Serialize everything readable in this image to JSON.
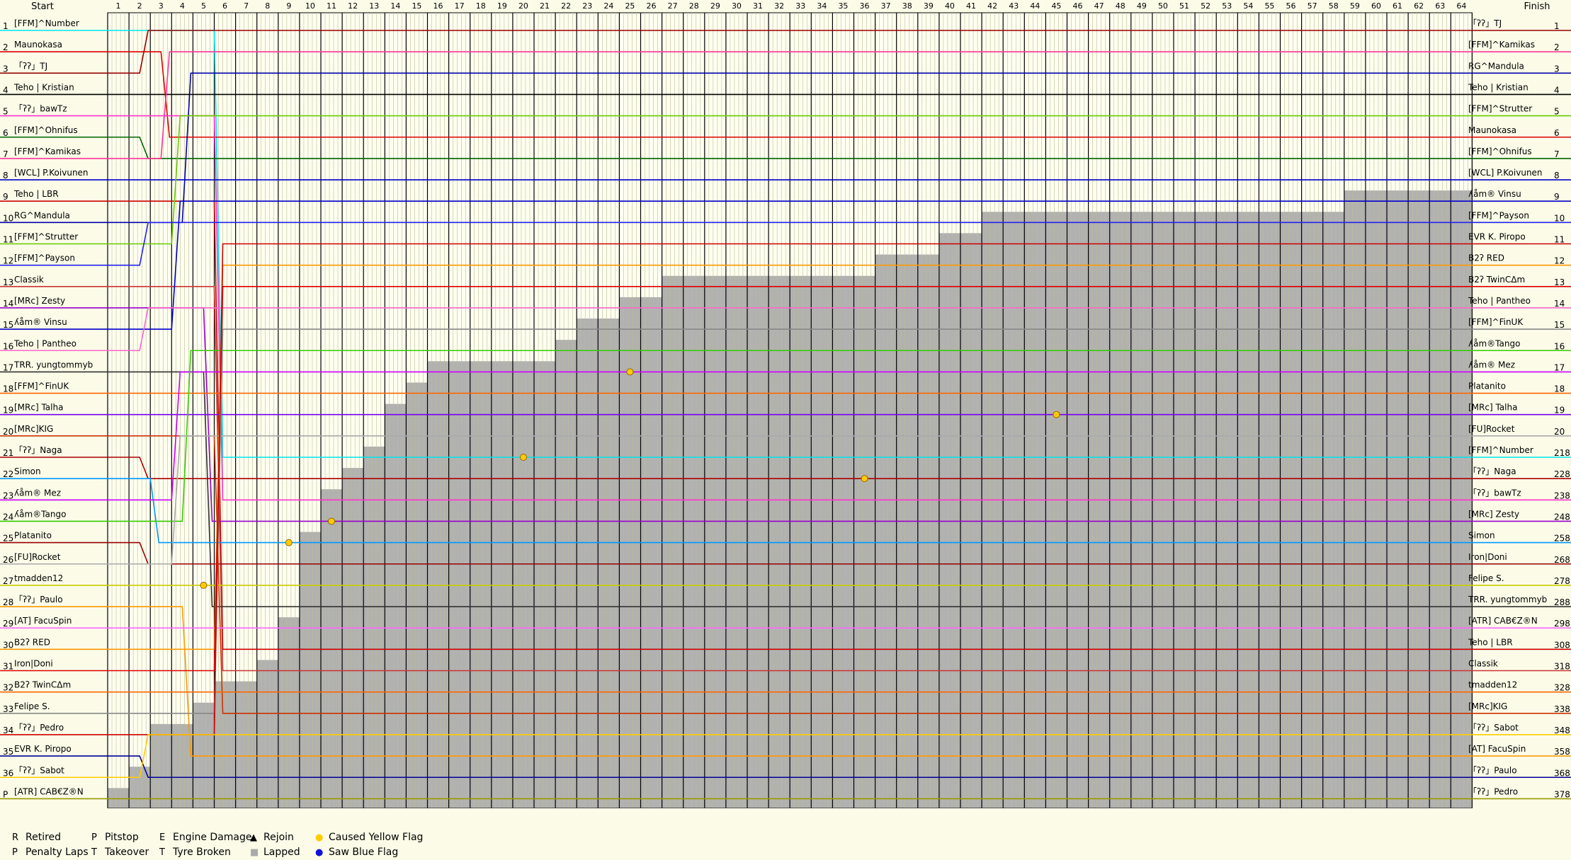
{
  "header": {
    "start": "Start",
    "finish": "Finish"
  },
  "chart_data": {
    "type": "line",
    "laps": 64,
    "start_positions": [
      "1",
      "2",
      "3",
      "4",
      "5",
      "6",
      "7",
      "8",
      "9",
      "10",
      "11",
      "12",
      "13",
      "14",
      "15",
      "16",
      "17",
      "18",
      "19",
      "20",
      "21",
      "22",
      "23",
      "24",
      "25",
      "26",
      "27",
      "28",
      "29",
      "30",
      "31",
      "32",
      "33",
      "34",
      "35",
      "36",
      "P"
    ],
    "start_names": [
      "[FFM]^Number",
      "Maunokasa",
      "「ʔʔ」TJ",
      "Teho | Kristian",
      "「ʔʔ」bawTz",
      "[FFM]^Ohnifus",
      "[FFM]^Kamikas",
      "[WCL] P.Koivunen",
      "Teho | LBR",
      "RG^Mandula",
      "[FFM]^Strutter",
      "[FFM]^Payson",
      "Classik",
      "[MRc] Zesty",
      "ʎåm® Vinsu",
      "Teho | Pantheo",
      "TRR. yungtommyb",
      "[FFM]^FinUK",
      "[MRc] Talha",
      "[MRc]KIG",
      "「ʔʔ」Naga",
      "Simon",
      "ʎåm® Mez",
      "ʎåm®Tango",
      "Platanito",
      "[FU]Rocket",
      "tmadden12",
      "「ʔʔ」Paulo",
      "[AT] FacuSpin",
      "B2ʔ RED",
      "Iron|Doni",
      "B2ʔ TwinCΔm",
      "Felipe S.",
      "「ʔʔ」Pedro",
      "EVR K. Piropo",
      "「ʔʔ」Sabot",
      "[ATR] CAB€Z®N"
    ],
    "finish_names": [
      "「ʔʔ」TJ",
      "[FFM]^Kamikas",
      "RG^Mandula",
      "Teho | Kristian",
      "[FFM]^Strutter",
      "Maunokasa",
      "[FFM]^Ohnifus",
      "[WCL] P.Koivunen",
      "ʎåm® Vinsu",
      "[FFM]^Payson",
      "EVR K. Piropo",
      "B2ʔ RED",
      "B2ʔ TwinCΔm",
      "Teho | Pantheo",
      "[FFM]^FinUK",
      "ʎåm®Tango",
      "ʎåm® Mez",
      "Platanito",
      "[MRc] Talha",
      "[FU]Rocket",
      "[FFM]^Number",
      "「ʔʔ」Naga",
      "「ʔʔ」bawTz",
      "[MRc] Zesty",
      "Simon",
      "Iron|Doni",
      "Felipe S.",
      "TRR. yungtommyb",
      "[ATR] CAB€Z®N",
      "Teho | LBR",
      "Classik",
      "tmadden12",
      "[MRc]KIG",
      "「ʔʔ」Sabot",
      "[AT] FacuSpin",
      "「ʔʔ」Paulo",
      "「ʔʔ」Pedro"
    ],
    "finish_positions": [
      "1",
      "2",
      "3",
      "4",
      "5",
      "6",
      "7",
      "8",
      "9",
      "10",
      "11",
      "12",
      "13",
      "14",
      "15",
      "16",
      "17",
      "18",
      "19",
      "20",
      "21",
      "22",
      "23",
      "24",
      "25",
      "26",
      "27",
      "28",
      "29",
      "30",
      "31",
      "32",
      "33",
      "34",
      "35",
      "36",
      "37"
    ],
    "finish_suffix": [
      "",
      "",
      "",
      "",
      "",
      "",
      "",
      "",
      "",
      "",
      "",
      "",
      "",
      "",
      "",
      "",
      "",
      "",
      "",
      "",
      "8",
      "8",
      "8",
      "8",
      "8",
      "8",
      "8",
      "8",
      "8",
      "8",
      "8",
      "8",
      "8",
      "8",
      "8",
      "8",
      "8"
    ],
    "colors": [
      "#00e5ee",
      "#dd0000",
      "#990000",
      "#000000",
      "#ff33cc",
      "#006600",
      "#ff3399",
      "#0000cc",
      "#cc0000",
      "#0000aa",
      "#66cc00",
      "#2222ee",
      "#cc3333",
      "#9900cc",
      "#0000cc",
      "#ff66cc",
      "#333333",
      "#ff6600",
      "#7700ee",
      "#cc3300",
      "#aa0000",
      "#0099ff",
      "#cc00ff",
      "#33cc00",
      "#990000",
      "#aaaaaa",
      "#cccc00",
      "#ff9900",
      "#ff66ff",
      "#ff9900",
      "#dd0000",
      "#ff6600",
      "#888888",
      "#cc0000",
      "#000099",
      "#ffcc00",
      "#999900"
    ],
    "finish_rows": [
      21,
      6,
      1,
      4,
      23,
      7,
      2,
      8,
      30,
      3,
      5,
      10,
      31,
      24,
      9,
      14,
      28,
      18,
      19,
      33,
      22,
      25,
      17,
      16,
      26,
      20,
      27,
      35,
      29,
      12,
      13,
      32,
      15,
      11,
      36,
      34,
      37
    ],
    "lapped_rows": [
      37,
      36,
      34,
      34,
      33,
      32,
      32,
      31,
      29,
      25,
      23,
      22,
      21,
      19,
      18,
      17,
      17,
      17,
      17,
      17,
      17,
      16,
      15,
      15,
      14,
      14,
      13,
      13,
      13,
      13,
      13,
      13,
      13,
      13,
      13,
      13,
      12,
      12,
      12,
      11,
      11,
      10,
      10,
      10,
      10,
      10,
      10,
      10,
      10,
      10,
      10,
      10,
      10,
      10,
      10,
      10,
      10,
      10,
      9,
      9,
      9,
      9,
      9,
      9
    ],
    "legend": [
      {
        "symbol": "R",
        "label": "Retired"
      },
      {
        "symbol": "P",
        "label": "Pitstop"
      },
      {
        "symbol": "E",
        "label": "Engine Damage"
      },
      {
        "symbol": "▲",
        "label": "Rejoin"
      },
      {
        "symbol": "●",
        "label": "Caused Yellow Flag",
        "color": "#ffcc00"
      },
      {
        "symbol": "P",
        "label": "Penalty Laps"
      },
      {
        "symbol": "T",
        "label": "Takeover"
      },
      {
        "symbol": "T",
        "label": "Tyre Broken"
      },
      {
        "symbol": "■",
        "label": "Lapped",
        "color": "#aaaaaa"
      },
      {
        "symbol": "●",
        "label": "Saw Blue Flag",
        "color": "#1111dd"
      }
    ]
  }
}
